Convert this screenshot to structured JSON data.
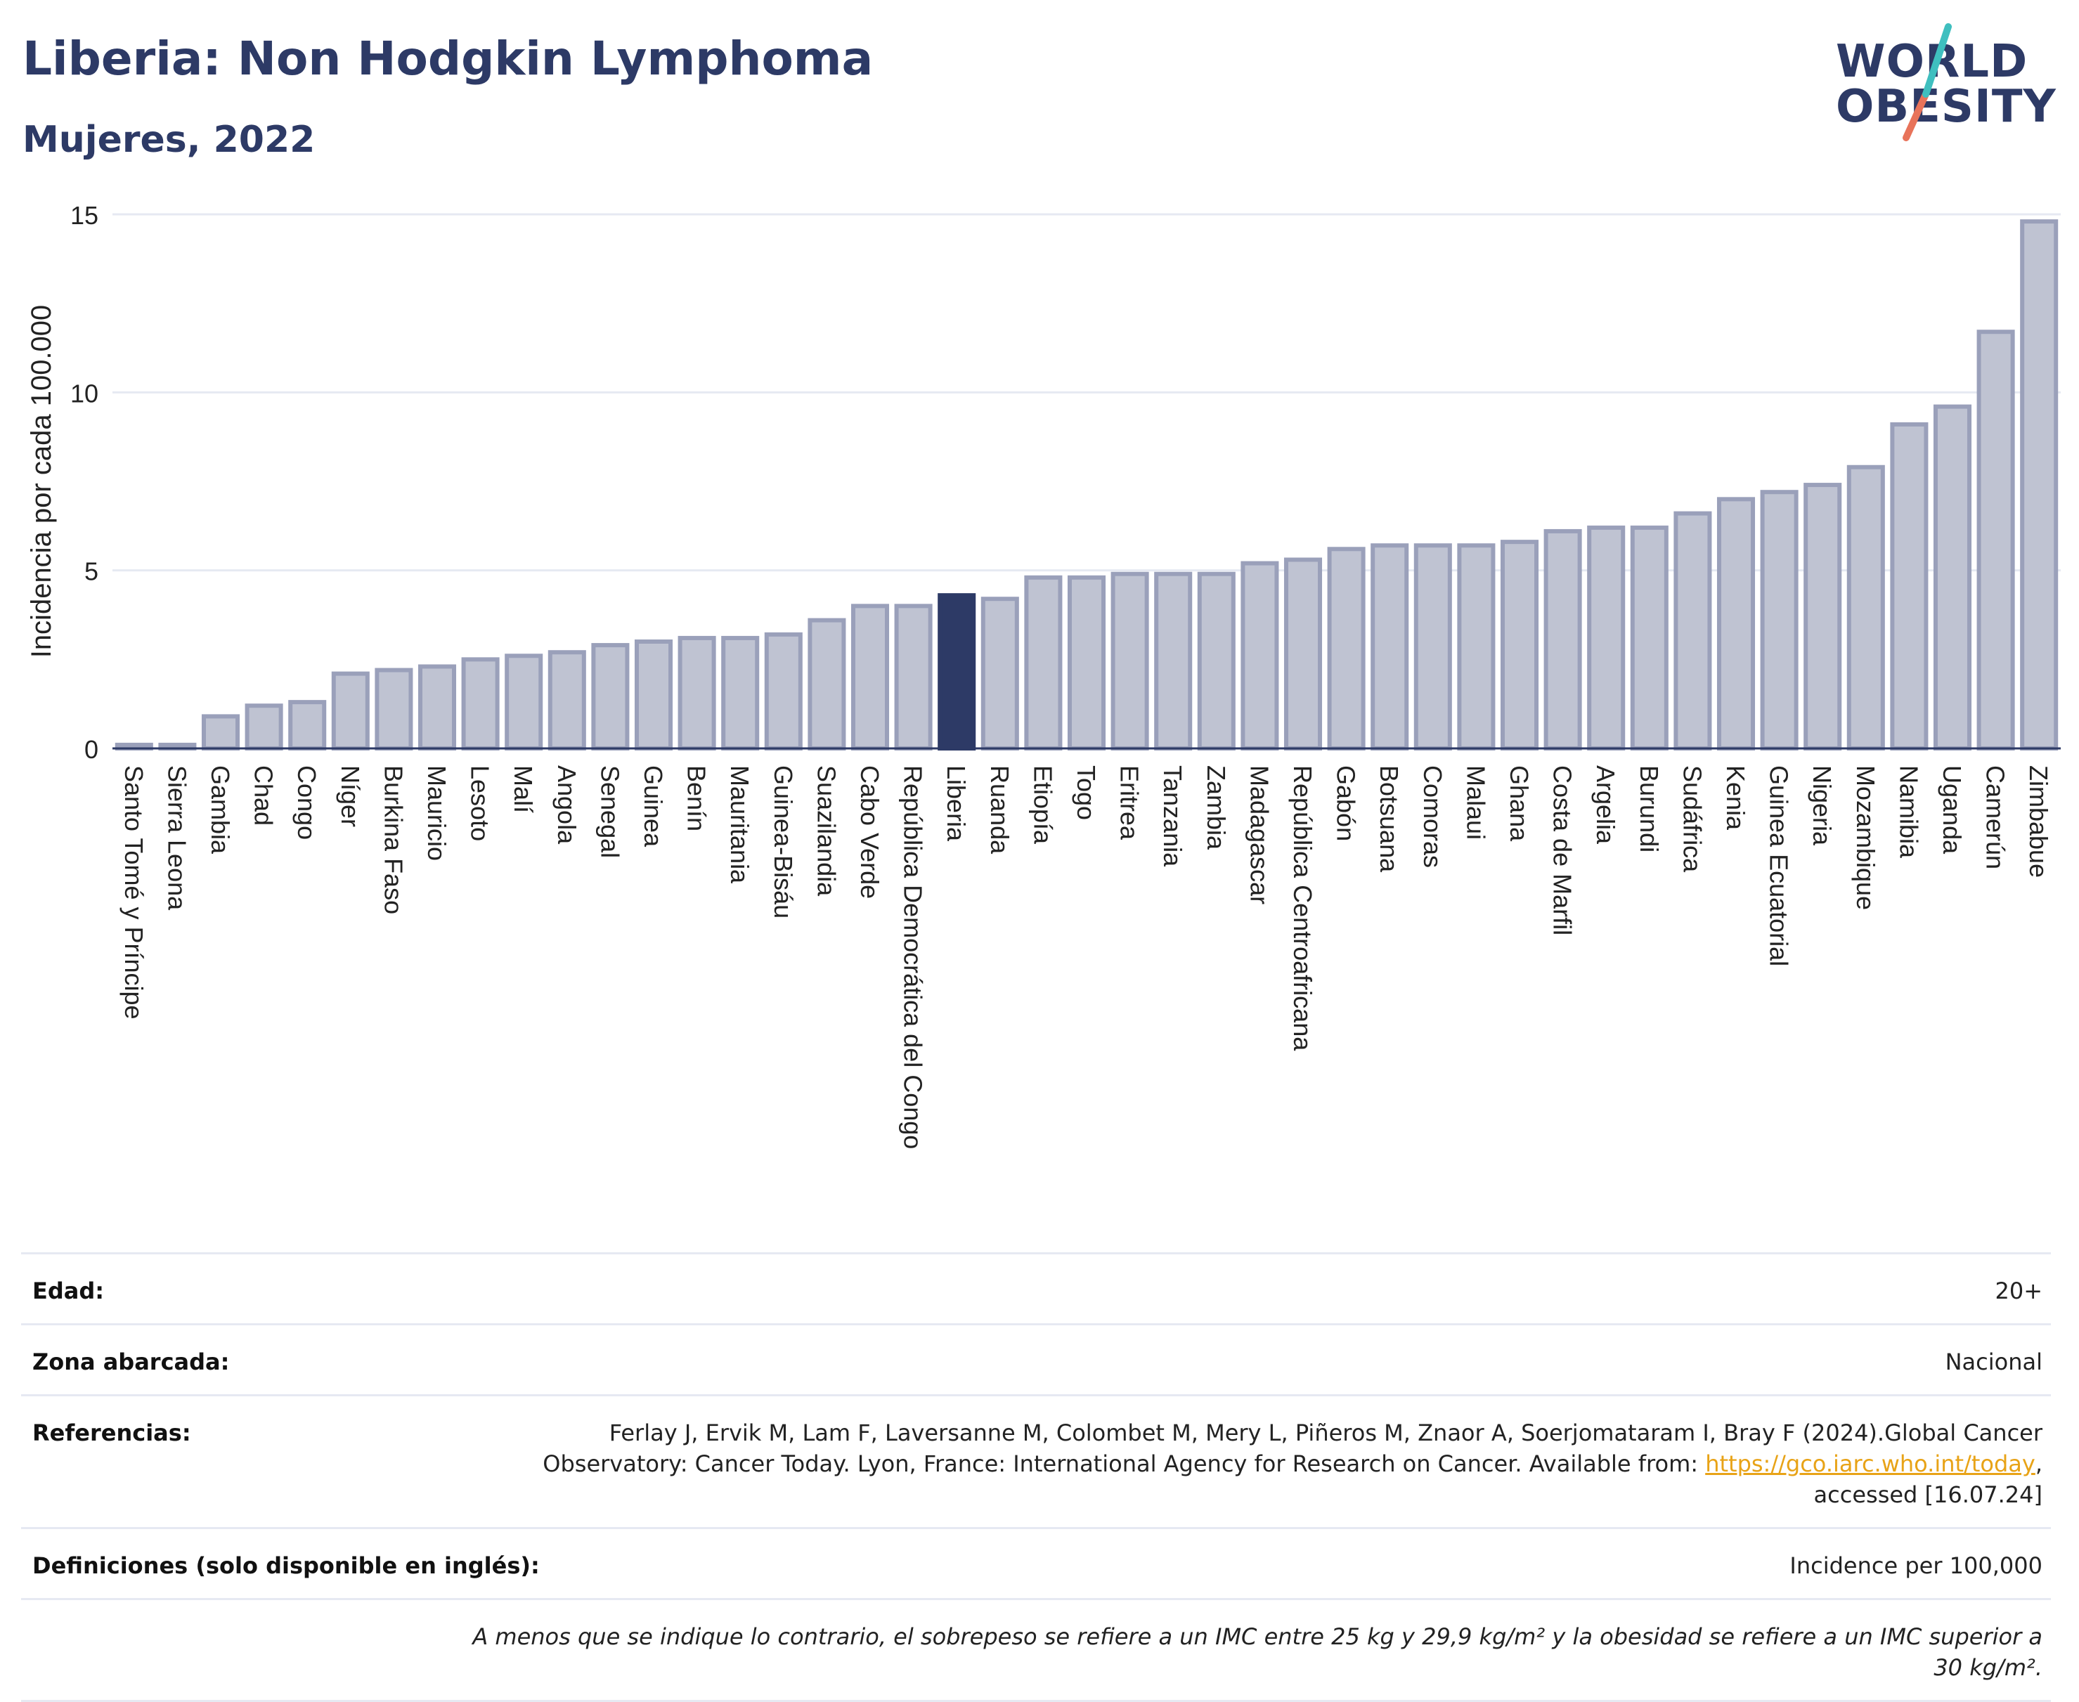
{
  "header": {
    "title": "Liberia: Non Hodgkin Lymphoma",
    "subtitle": "Mujeres, 2022"
  },
  "logo": {
    "line1": "WORLD",
    "line2": "OBESITY"
  },
  "colors": {
    "bar": "#bfc3d2",
    "bar_border": "#9aa0ba",
    "highlight": "#2d3a66",
    "text": "#2d3a66"
  },
  "chart_data": {
    "type": "bar",
    "ylabel": "Incidencia por cada 100.000",
    "ylim": [
      0,
      15
    ],
    "yticks": [
      0,
      5,
      10,
      15
    ],
    "highlight": "Liberia",
    "categories": [
      "Santo Tomé y Príncipe",
      "Sierra Leona",
      "Gambia",
      "Chad",
      "Congo",
      "Níger",
      "Burkina Faso",
      "Mauricio",
      "Lesoto",
      "Malí",
      "Angola",
      "Senegal",
      "Guinea",
      "Benín",
      "Mauritania",
      "Guinea-Bisáu",
      "Suazilandia",
      "Cabo Verde",
      "República Democrática del Congo",
      "Liberia",
      "Ruanda",
      "Etiopía",
      "Togo",
      "Eritrea",
      "Tanzania",
      "Zambia",
      "Madagascar",
      "República Centroafricana",
      "Gabón",
      "Botsuana",
      "Comoras",
      "Malaui",
      "Ghana",
      "Costa de Marfil",
      "Argelia",
      "Burundi",
      "Sudáfrica",
      "Kenia",
      "Guinea Ecuatorial",
      "Nigeria",
      "Mozambique",
      "Namibia",
      "Uganda",
      "Camerún",
      "Zimbabue"
    ],
    "values": [
      0.1,
      0.1,
      0.9,
      1.2,
      1.3,
      2.1,
      2.2,
      2.3,
      2.5,
      2.6,
      2.7,
      2.9,
      3.0,
      3.1,
      3.1,
      3.2,
      3.6,
      4.0,
      4.0,
      4.3,
      4.2,
      4.8,
      4.8,
      4.9,
      4.9,
      4.9,
      5.2,
      5.3,
      5.6,
      5.7,
      5.7,
      5.7,
      5.8,
      6.1,
      6.2,
      6.2,
      6.6,
      7.0,
      7.2,
      7.4,
      7.9,
      9.1,
      9.6,
      11.7,
      14.8
    ]
  },
  "meta": {
    "age_label": "Edad:",
    "age_value": "20+",
    "area_label": "Zona abarcada:",
    "area_value": "Nacional",
    "ref_label": "Referencias:",
    "ref_text": "Ferlay J, Ervik M, Lam F, Laversanne M, Colombet M, Mery L, Piñeros M, Znaor A, Soerjomataram I, Bray F (2024).Global Cancer Observatory: Cancer Today. Lyon, France: International Agency for Research on Cancer. Available from: ",
    "ref_link": "https://gco.iarc.who.int/today",
    "ref_tail": ", accessed [16.07.24]",
    "def_label": "Definiciones (solo disponible en inglés):",
    "def_value": "Incidence per 100,000",
    "note": "A menos que se indique lo contrario, el sobrepeso se refiere a un IMC entre 25 kg y 29,9 kg/m² y la obesidad se refiere a un IMC superior a 30 kg/m²."
  }
}
